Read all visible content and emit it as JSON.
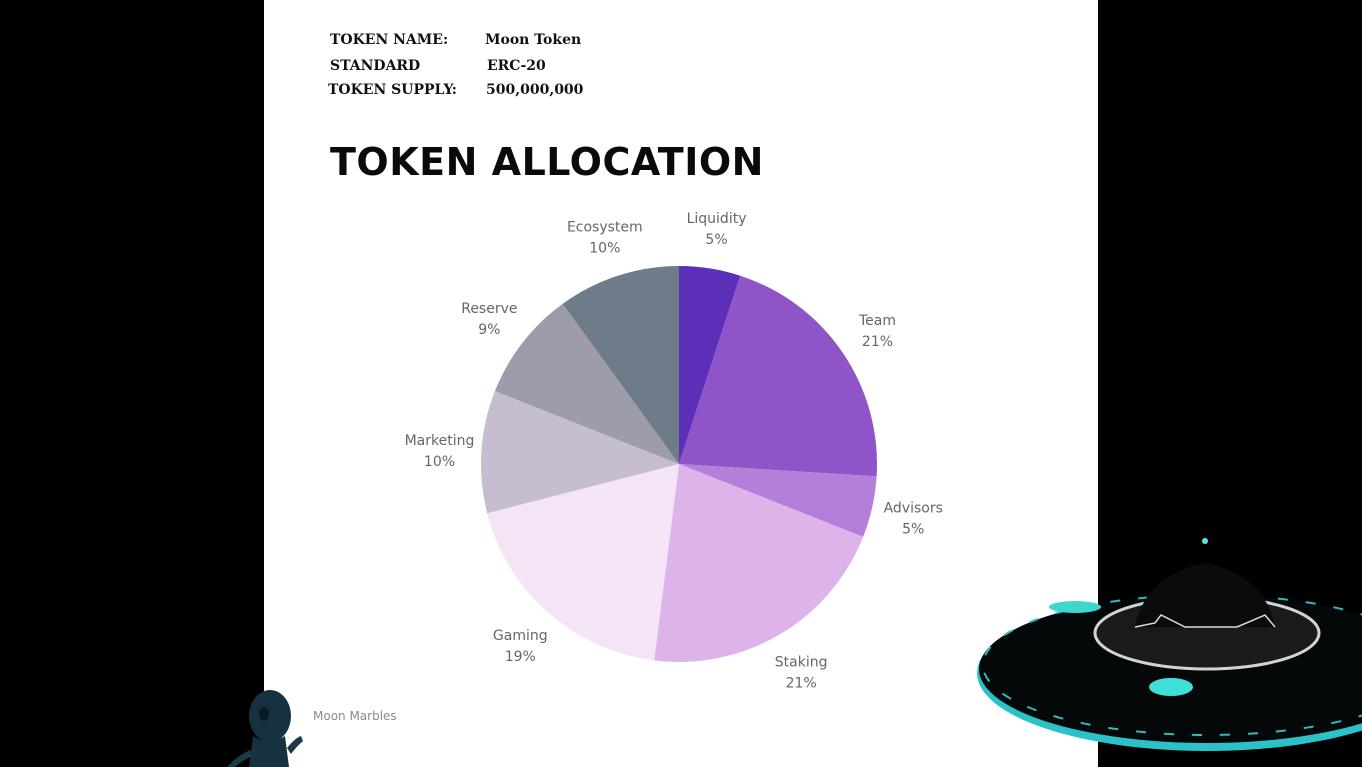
{
  "token_info": [
    {
      "label": "TOKEN NAME:",
      "value": "Moon Token"
    },
    {
      "label": "STANDARD",
      "value": "ERC-20"
    },
    {
      "label": "TOKEN SUPPLY:",
      "value": "500,000,000"
    }
  ],
  "footer": {
    "brand": "Moon Marbles"
  },
  "chart_data": {
    "type": "pie",
    "title": "TOKEN ALLOCATION",
    "start_angle_deg": 0,
    "direction": "clockwise",
    "slices": [
      {
        "label": "Liquidity",
        "value": 5,
        "value_label": "5%",
        "color": "#5b2fb8"
      },
      {
        "label": "Team",
        "value": 21,
        "value_label": "21%",
        "color": "#8f55c8"
      },
      {
        "label": "Advisors",
        "value": 5,
        "value_label": "5%",
        "color": "#b47fd8"
      },
      {
        "label": "Staking",
        "value": 21,
        "value_label": "21%",
        "color": "#ddb4ea"
      },
      {
        "label": "Gaming",
        "value": 19,
        "value_label": "19%",
        "color": "#f5e3f6"
      },
      {
        "label": "Marketing",
        "value": 10,
        "value_label": "10%",
        "color": "#c7bdd1"
      },
      {
        "label": "Reserve",
        "value": 9,
        "value_label": "9%",
        "color": "#9d9cab"
      },
      {
        "label": "Ecosystem",
        "value": 10,
        "value_label": "10%",
        "color": "#6d7c88"
      }
    ],
    "label_color": "#666666"
  }
}
